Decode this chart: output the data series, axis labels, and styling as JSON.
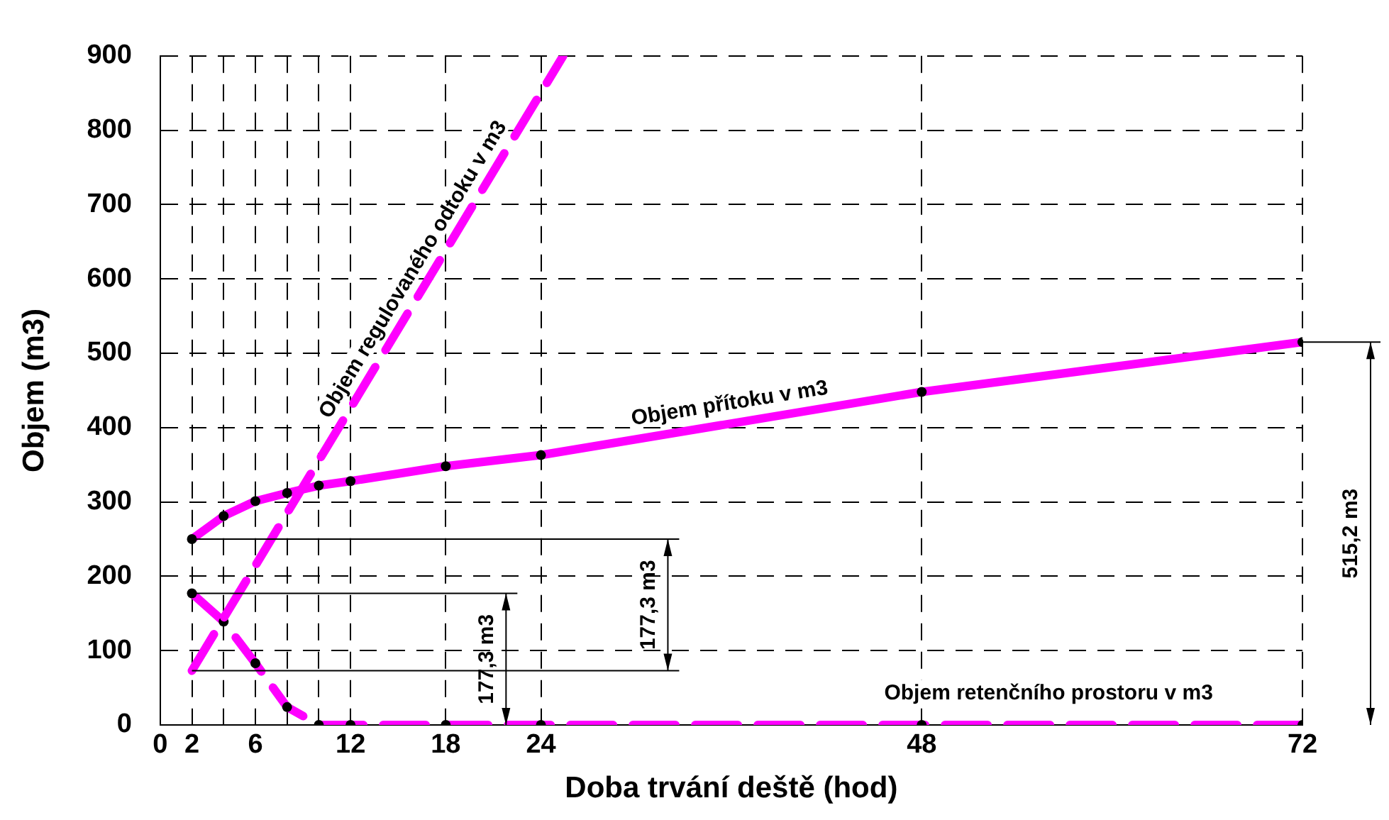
{
  "chart_data": {
    "type": "line",
    "xlabel": "Doba trvání deště (hod)",
    "ylabel": "Objem (m3)",
    "xlim": [
      0,
      72
    ],
    "xticks": [
      0,
      2,
      {
        "value": 4,
        "label": null
      },
      6,
      {
        "value": 8,
        "label": null
      },
      {
        "value": 10,
        "label": null
      },
      12,
      18,
      24,
      48,
      72
    ],
    "ylim": [
      0,
      900
    ],
    "yticks": [
      0,
      100,
      200,
      300,
      400,
      500,
      600,
      700,
      800,
      900
    ],
    "grid": true,
    "legend": false,
    "series": [
      {
        "name": "Objem přítoku v m3",
        "color": "#ff00ff",
        "line_style": "solid",
        "marker": "circle",
        "x": [
          2,
          4,
          6,
          8,
          10,
          12,
          18,
          24,
          48,
          72
        ],
        "values": [
          250,
          281,
          301,
          312,
          322,
          328,
          348,
          363,
          448,
          515
        ]
      },
      {
        "name": "Objem regulovaného odtoku v m3",
        "color": "#ff00ff",
        "line_style": "dashed",
        "marker": "none",
        "x": [
          2,
          25.4
        ],
        "values": [
          73,
          900
        ]
      },
      {
        "name": "Objem retenčního prostoru v m3",
        "color": "#ff00ff",
        "line_style": "dashed",
        "marker": "circle",
        "x": [
          2,
          4,
          6,
          8,
          10,
          12,
          18,
          24,
          48,
          72
        ],
        "values": [
          177,
          139,
          83,
          24,
          0,
          0,
          0,
          0,
          0,
          0
        ]
      }
    ],
    "ref_lines": [
      {
        "axis": "y",
        "value": 177
      },
      {
        "axis": "y",
        "value": 250
      },
      {
        "axis": "y",
        "value": 73
      }
    ],
    "annotations": [
      "177,3 m3",
      "177,3 m3",
      "515,2 m3"
    ]
  }
}
